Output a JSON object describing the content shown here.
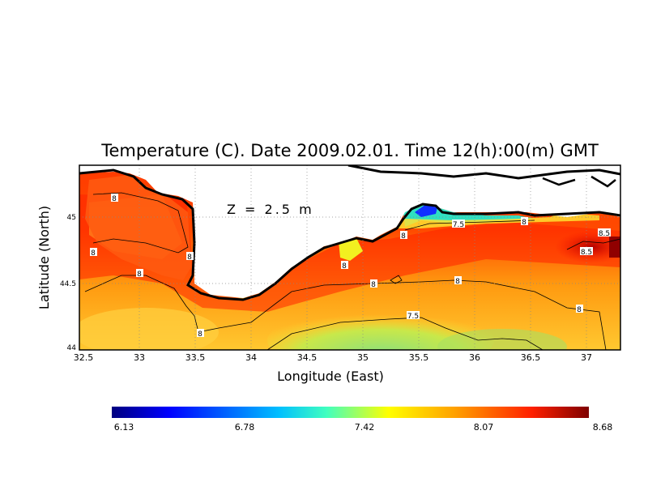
{
  "title": "Temperature (C). Date 2009.02.01. Time 12(h):00(m) GMT",
  "depth_label": "Z = 2.5 m",
  "x_axis": {
    "label": "Longitude (East)",
    "ticks": [
      "32.5",
      "33",
      "33.5",
      "34",
      "34.5",
      "35",
      "35.5",
      "36",
      "36.5",
      "37"
    ],
    "range": [
      32.5,
      37.33
    ]
  },
  "y_axis": {
    "label": "Latitude (North)",
    "ticks": [
      "44",
      "44.5",
      "45"
    ],
    "range": [
      44.0,
      45.45
    ]
  },
  "grid": "dotted",
  "contour_labels": [
    "8",
    "8",
    "8",
    "8",
    "8",
    "8",
    "8",
    "8",
    "7.5",
    "7.5",
    "8.5",
    "8.5"
  ],
  "colorbar": {
    "ticks": [
      "6.13",
      "6.78",
      "7.42",
      "8.07",
      "8.68"
    ],
    "colors": [
      "#00007f",
      "#0000ff",
      "#00bfff",
      "#40ffbf",
      "#ffff00",
      "#ffa000",
      "#ff2000",
      "#7f0000"
    ]
  }
}
